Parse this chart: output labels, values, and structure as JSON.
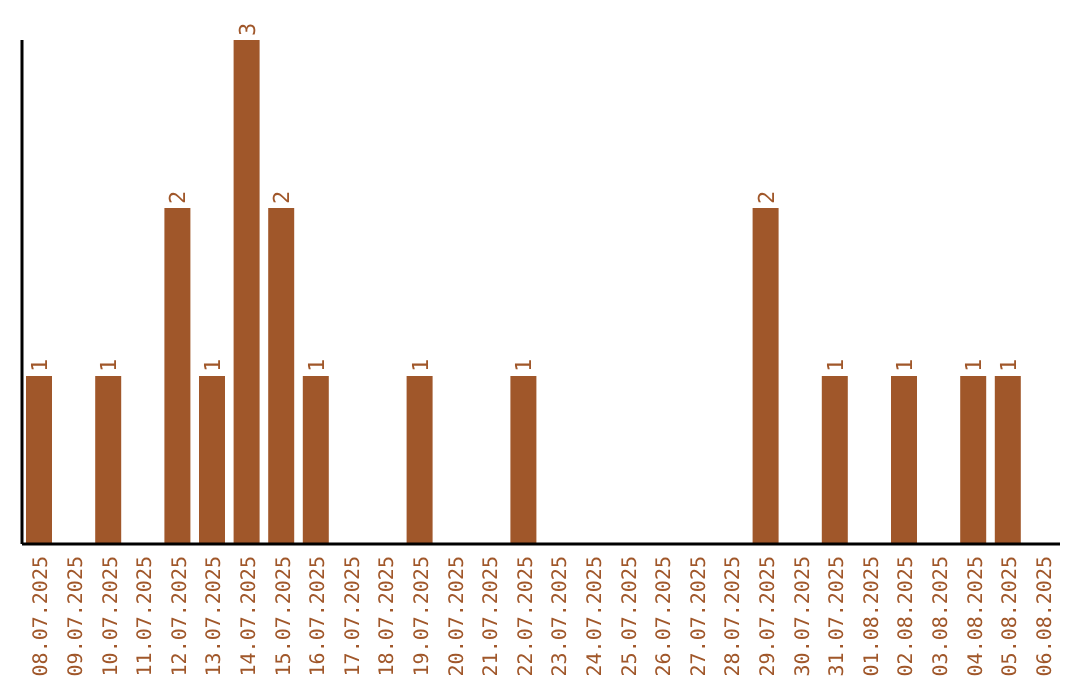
{
  "chart_data": {
    "type": "bar",
    "categories": [
      "08.07.2025",
      "09.07.2025",
      "10.07.2025",
      "11.07.2025",
      "12.07.2025",
      "13.07.2025",
      "14.07.2025",
      "15.07.2025",
      "16.07.2025",
      "17.07.2025",
      "18.07.2025",
      "19.07.2025",
      "20.07.2025",
      "21.07.2025",
      "22.07.2025",
      "23.07.2025",
      "24.07.2025",
      "25.07.2025",
      "26.07.2025",
      "27.07.2025",
      "28.07.2025",
      "29.07.2025",
      "30.07.2025",
      "31.07.2025",
      "01.08.2025",
      "02.08.2025",
      "03.08.2025",
      "04.08.2025",
      "05.08.2025",
      "06.08.2025"
    ],
    "values": [
      1,
      null,
      1,
      null,
      2,
      1,
      3,
      2,
      1,
      null,
      null,
      1,
      null,
      null,
      1,
      null,
      null,
      null,
      null,
      null,
      null,
      2,
      null,
      1,
      null,
      1,
      null,
      1,
      1,
      null
    ],
    "color": "#a0572a",
    "ylim": [
      0,
      3
    ],
    "data_labels": true,
    "grid": false,
    "tick_labels": "x"
  }
}
